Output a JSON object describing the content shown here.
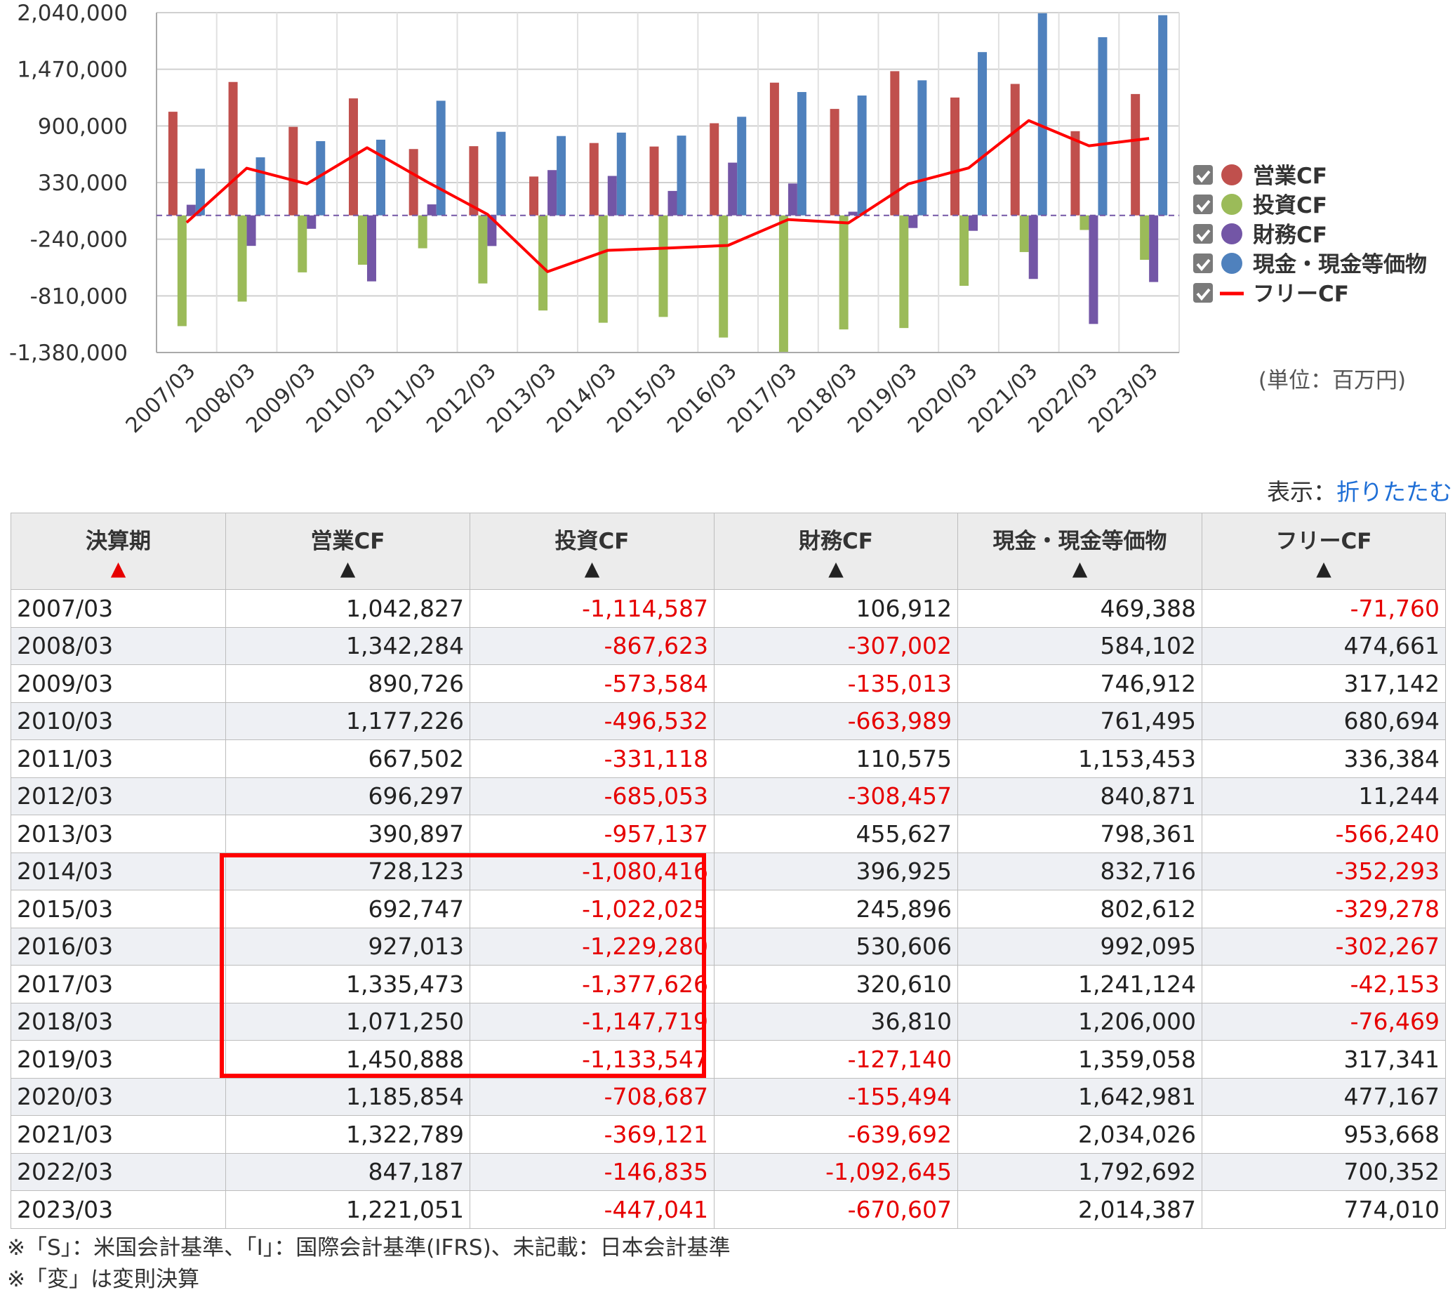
{
  "chart_data": {
    "type": "bar",
    "categories": [
      "2007/03",
      "2008/03",
      "2009/03",
      "2010/03",
      "2011/03",
      "2012/03",
      "2013/03",
      "2014/03",
      "2015/03",
      "2016/03",
      "2017/03",
      "2018/03",
      "2019/03",
      "2020/03",
      "2021/03",
      "2022/03",
      "2023/03"
    ],
    "y_ticks": [
      "2,040,000",
      "1,470,000",
      "900,000",
      "330,000",
      "-240,000",
      "-810,000",
      "-1,380,000"
    ],
    "ylim": [
      -1380000,
      2040000
    ],
    "unit_label": "(単位：百万円)",
    "series": [
      {
        "name": "営業CF",
        "type": "bar",
        "color": "#c0504d",
        "values": [
          1042827,
          1342284,
          890726,
          1177226,
          667502,
          696297,
          390897,
          728123,
          692747,
          927013,
          1335473,
          1071250,
          1450888,
          1185854,
          1322789,
          847187,
          1221051
        ]
      },
      {
        "name": "投資CF",
        "type": "bar",
        "color": "#9bbb59",
        "values": [
          -1114587,
          -867623,
          -573584,
          -496532,
          -331118,
          -685053,
          -957137,
          -1080416,
          -1022025,
          -1229280,
          -1377626,
          -1147719,
          -1133547,
          -708687,
          -369121,
          -146835,
          -447041
        ]
      },
      {
        "name": "財務CF",
        "type": "bar",
        "color": "#7356a6",
        "values": [
          106912,
          -307002,
          -135013,
          -663989,
          110575,
          -308457,
          455627,
          396925,
          245896,
          530606,
          320610,
          36810,
          -127140,
          -155494,
          -639692,
          -1092645,
          -670607
        ]
      },
      {
        "name": "現金・現金等価物",
        "type": "bar",
        "color": "#4f81bd",
        "values": [
          469388,
          584102,
          746912,
          761495,
          1153453,
          840871,
          798361,
          832716,
          802612,
          992095,
          1241124,
          1206000,
          1359058,
          1642981,
          2034026,
          1792692,
          2014387
        ]
      },
      {
        "name": "フリーCF",
        "type": "line",
        "color": "#ff0000",
        "values": [
          -71760,
          474661,
          317142,
          680694,
          336384,
          11244,
          -566240,
          -352293,
          -329278,
          -302267,
          -42153,
          -76469,
          317341,
          477167,
          953668,
          700352,
          774010
        ]
      }
    ],
    "legend_position": "right",
    "grid": true
  },
  "toggle": {
    "label": "表示：",
    "link": "折りたたむ"
  },
  "table": {
    "columns": [
      {
        "label": "決算期",
        "sort": "▲"
      },
      {
        "label": "営業CF",
        "sort": "▲"
      },
      {
        "label": "投資CF",
        "sort": "▲"
      },
      {
        "label": "財務CF",
        "sort": "▲"
      },
      {
        "label": "現金・現金等価物",
        "sort": "▲"
      },
      {
        "label": "フリーCF",
        "sort": "▲"
      }
    ],
    "rows": [
      [
        "2007/03",
        "1,042,827",
        "-1,114,587",
        "106,912",
        "469,388",
        "-71,760"
      ],
      [
        "2008/03",
        "1,342,284",
        "-867,623",
        "-307,002",
        "584,102",
        "474,661"
      ],
      [
        "2009/03",
        "890,726",
        "-573,584",
        "-135,013",
        "746,912",
        "317,142"
      ],
      [
        "2010/03",
        "1,177,226",
        "-496,532",
        "-663,989",
        "761,495",
        "680,694"
      ],
      [
        "2011/03",
        "667,502",
        "-331,118",
        "110,575",
        "1,153,453",
        "336,384"
      ],
      [
        "2012/03",
        "696,297",
        "-685,053",
        "-308,457",
        "840,871",
        "11,244"
      ],
      [
        "2013/03",
        "390,897",
        "-957,137",
        "455,627",
        "798,361",
        "-566,240"
      ],
      [
        "2014/03",
        "728,123",
        "-1,080,416",
        "396,925",
        "832,716",
        "-352,293"
      ],
      [
        "2015/03",
        "692,747",
        "-1,022,025",
        "245,896",
        "802,612",
        "-329,278"
      ],
      [
        "2016/03",
        "927,013",
        "-1,229,280",
        "530,606",
        "992,095",
        "-302,267"
      ],
      [
        "2017/03",
        "1,335,473",
        "-1,377,626",
        "320,610",
        "1,241,124",
        "-42,153"
      ],
      [
        "2018/03",
        "1,071,250",
        "-1,147,719",
        "36,810",
        "1,206,000",
        "-76,469"
      ],
      [
        "2019/03",
        "1,450,888",
        "-1,133,547",
        "-127,140",
        "1,359,058",
        "317,341"
      ],
      [
        "2020/03",
        "1,185,854",
        "-708,687",
        "-155,494",
        "1,642,981",
        "477,167"
      ],
      [
        "2021/03",
        "1,322,789",
        "-369,121",
        "-639,692",
        "2,034,026",
        "953,668"
      ],
      [
        "2022/03",
        "847,187",
        "-146,835",
        "-1,092,645",
        "1,792,692",
        "700,352"
      ],
      [
        "2023/03",
        "1,221,051",
        "-447,041",
        "-670,607",
        "2,014,387",
        "774,010"
      ]
    ]
  },
  "footnotes": [
    "※「S」：米国会計基準、「I」：国際会計基準(IFRS)、未記載：日本会計基準",
    "※「変」は変則決算"
  ]
}
